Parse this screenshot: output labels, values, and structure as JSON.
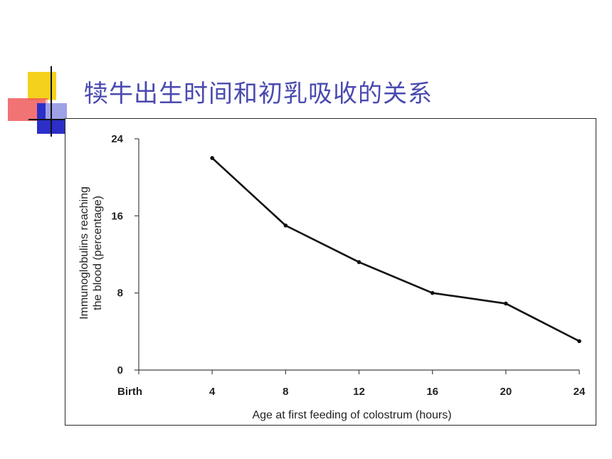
{
  "slide": {
    "title": "犊牛出生时间和初乳吸收的关系"
  },
  "chart_data": {
    "type": "line",
    "title": "",
    "xlabel": "Age at first feeding of colostrum (hours)",
    "ylabel_lines": [
      "Immunoglobulins reaching",
      "the blood (percentage)"
    ],
    "x_ticks": [
      0,
      4,
      8,
      12,
      16,
      20,
      24
    ],
    "x_tick_labels": [
      "Birth",
      "4",
      "8",
      "12",
      "16",
      "20",
      "24"
    ],
    "y_ticks": [
      0,
      8,
      16,
      24
    ],
    "xlim": [
      0,
      24
    ],
    "ylim": [
      0,
      24
    ],
    "grid": false,
    "series": [
      {
        "color": "#111111",
        "x": [
          4,
          8,
          12,
          16,
          20,
          24
        ],
        "y": [
          22,
          15,
          11.2,
          8,
          6.9,
          3
        ]
      }
    ]
  }
}
